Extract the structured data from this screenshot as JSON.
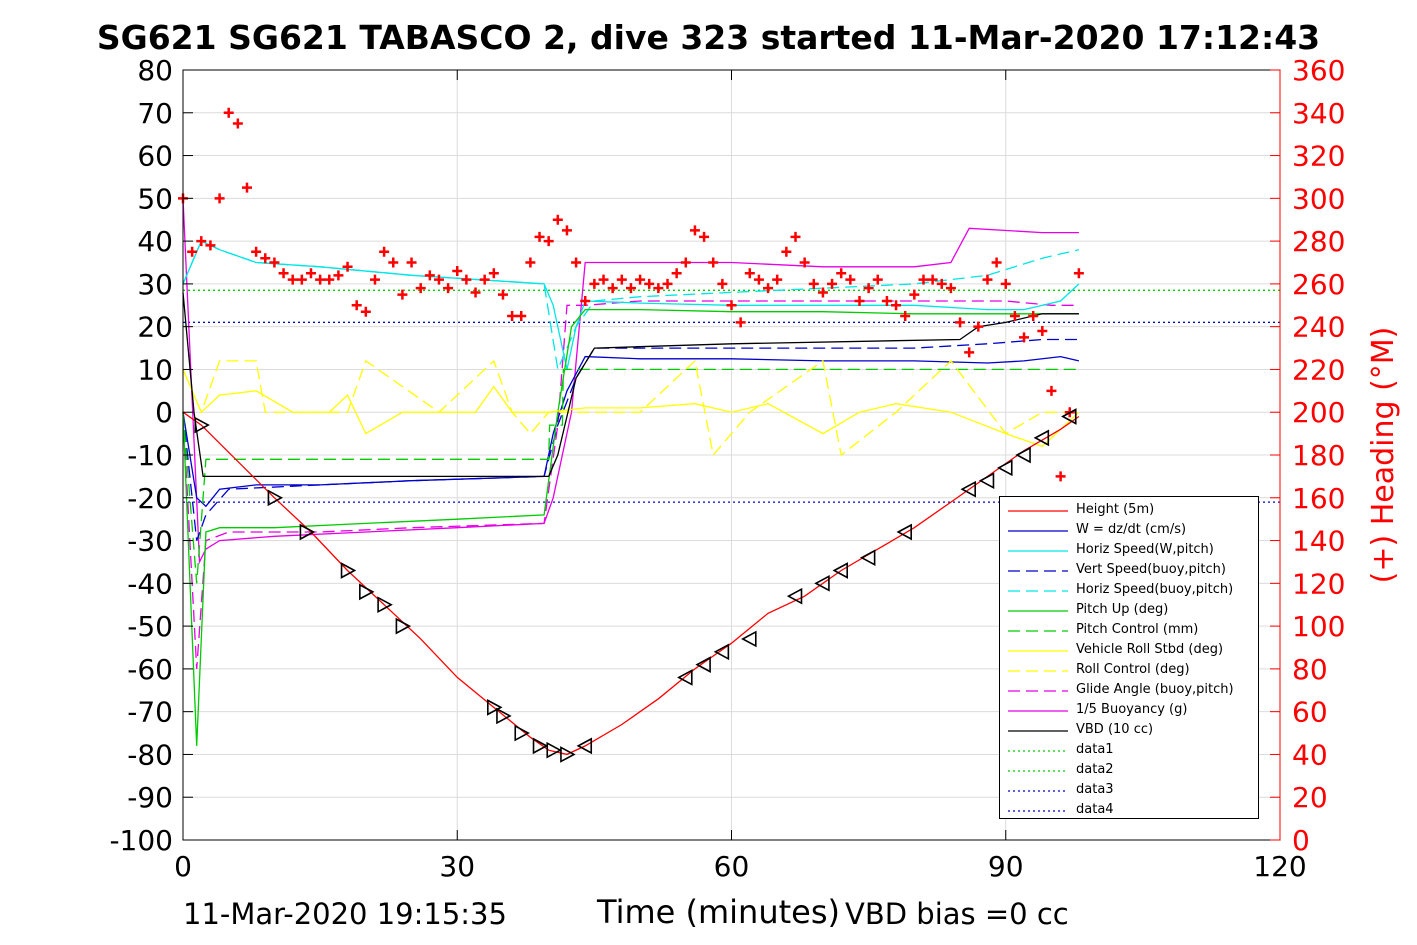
{
  "title": "SG621 SG621 TABASCO 2, dive 323 started 11-Mar-2020 17:12:43",
  "footer": {
    "timestamp": "11-Mar-2020 19:15:35",
    "xlabel": "Time (minutes)",
    "vbd_bias": "VBD bias =0 cc"
  },
  "chart_data": {
    "type": "line",
    "xlabel": "Time (minutes)",
    "ylabel": "",
    "y2label": "(+) Heading (°M)",
    "xlim": [
      0,
      120
    ],
    "ylim": [
      -100,
      80
    ],
    "y2lim": [
      0,
      360
    ],
    "xticks": [
      "0",
      "30",
      "60",
      "90",
      "120"
    ],
    "yticks": [
      "80",
      "70",
      "60",
      "50",
      "40",
      "30",
      "20",
      "10",
      "0",
      "-10",
      "-20",
      "-30",
      "-40",
      "-50",
      "-60",
      "-70",
      "-80",
      "-90",
      "-100"
    ],
    "y2ticks": [
      "360",
      "340",
      "320",
      "300",
      "280",
      "260",
      "240",
      "220",
      "200",
      "180",
      "160",
      "140",
      "120",
      "100",
      "80",
      "60",
      "40",
      "20",
      "0"
    ],
    "grid": true,
    "legend_position": "bottom-right",
    "colors": {
      "height": "#ff0000",
      "w": "#0000cc",
      "horiz_w": "#00e6e6",
      "vert_buoy": "#0000cc",
      "horiz_buoy": "#00e6e6",
      "pitch": "#00cc00",
      "pitch_ctrl": "#00cc00",
      "roll": "#ffff00",
      "roll_ctrl": "#ffff00",
      "glide": "#e600e6",
      "buoyancy": "#e600e6",
      "vbd": "#000000",
      "data1": "#00cc00",
      "data2": "#00cc00",
      "data3": "#0000cc",
      "data4": "#0000cc",
      "heading": "#ff0000"
    },
    "legend": [
      {
        "key": "height",
        "label": "Height (5m)",
        "dash": "solid"
      },
      {
        "key": "w",
        "label": "W = dz/dt (cm/s)",
        "dash": "solid"
      },
      {
        "key": "horiz_w",
        "label": "Horiz Speed(W,pitch)",
        "dash": "solid"
      },
      {
        "key": "vert_buoy",
        "label": "Vert Speed(buoy,pitch)",
        "dash": "dashed"
      },
      {
        "key": "horiz_buoy",
        "label": "Horiz Speed(buoy,pitch)",
        "dash": "dashed"
      },
      {
        "key": "pitch",
        "label": "Pitch Up (deg)",
        "dash": "solid"
      },
      {
        "key": "pitch_ctrl",
        "label": "Pitch Control (mm)",
        "dash": "dashed"
      },
      {
        "key": "roll",
        "label": "Vehicle Roll Stbd (deg)",
        "dash": "solid"
      },
      {
        "key": "roll_ctrl",
        "label": "Roll Control (deg)",
        "dash": "dashed"
      },
      {
        "key": "glide",
        "label": "Glide Angle (buoy,pitch)",
        "dash": "dashed"
      },
      {
        "key": "buoyancy",
        "label": "1/5 Buoyancy (g)",
        "dash": "solid"
      },
      {
        "key": "vbd",
        "label": "VBD (10 cc)",
        "dash": "solid"
      },
      {
        "key": "data1",
        "label": "data1",
        "dash": "dotted"
      },
      {
        "key": "data2",
        "label": "data2",
        "dash": "dotted"
      },
      {
        "key": "data3",
        "label": "data3",
        "dash": "dotted"
      },
      {
        "key": "data4",
        "label": "data4",
        "dash": "dotted"
      }
    ],
    "series": {
      "height": {
        "x": [
          0,
          2,
          10,
          14,
          18,
          22,
          26,
          30,
          34,
          38,
          40,
          42,
          44,
          48,
          52,
          56,
          60,
          64,
          68,
          72,
          76,
          80,
          84,
          88,
          92,
          96,
          98
        ],
        "y": [
          0,
          -3,
          -20,
          -28,
          -37,
          -45,
          -53,
          -62,
          -69,
          -76,
          -79,
          -80,
          -78,
          -73,
          -67,
          -60,
          -54,
          -47,
          -43,
          -37,
          -32,
          -27,
          -21,
          -15,
          -9,
          -4,
          -1
        ]
      },
      "w": {
        "x": [
          0,
          1.5,
          2.5,
          4,
          8,
          15,
          25,
          39.5,
          40.5,
          42,
          44,
          50,
          60,
          70,
          80,
          88,
          92,
          96,
          98
        ],
        "y": [
          0,
          -20,
          -22,
          -18,
          -17,
          -17,
          -16,
          -15,
          -5,
          5,
          13,
          12.5,
          12.5,
          12,
          12,
          11.5,
          12,
          13,
          12
        ]
      },
      "horiz_w": {
        "x": [
          0,
          2,
          4,
          8,
          15,
          25,
          39.5,
          40.5,
          42,
          43,
          44,
          50,
          60,
          70,
          80,
          88,
          92,
          96,
          98
        ],
        "y": [
          30,
          40,
          38,
          35,
          34,
          32,
          30,
          25,
          10,
          20,
          26,
          25.5,
          25,
          25,
          25,
          24,
          24,
          26,
          30
        ]
      },
      "vert_buoy": {
        "x": [
          0,
          1.5,
          2.5,
          5,
          15,
          25,
          39.5,
          41,
          43,
          45,
          50,
          60,
          70,
          80,
          88,
          94,
          98
        ],
        "y": [
          0,
          -30,
          -24,
          -18,
          -17,
          -16,
          -15,
          -3,
          8,
          15,
          15,
          15,
          15,
          15,
          16,
          17,
          17
        ]
      },
      "horiz_buoy": {
        "x": [
          0,
          2,
          4,
          8,
          15,
          25,
          39.5,
          41,
          43,
          45,
          50,
          60,
          70,
          80,
          88,
          94,
          98
        ],
        "y": [
          30,
          40,
          38,
          35,
          34,
          32,
          30,
          10,
          20,
          26,
          27,
          28,
          29,
          30,
          32,
          36,
          38
        ]
      },
      "pitch": {
        "x": [
          0,
          1.5,
          2.5,
          4,
          10,
          20,
          30,
          39.5,
          41,
          42.5,
          44,
          50,
          60,
          70,
          80,
          88,
          92,
          98
        ],
        "y": [
          0,
          -78,
          -28,
          -27,
          -27,
          -26,
          -25,
          -24,
          0,
          20,
          24,
          24,
          23.5,
          23.5,
          23,
          23,
          23,
          23
        ]
      },
      "pitch_ctrl": {
        "x": [
          0,
          1.5,
          2.5,
          40,
          40.1,
          41.5,
          41.6,
          85,
          98
        ],
        "y": [
          0,
          -40,
          -11,
          -11,
          -3,
          -3,
          10,
          10,
          10
        ]
      },
      "roll": {
        "x": [
          0,
          2,
          4,
          8,
          12,
          16,
          18,
          20,
          24,
          28,
          32,
          34,
          36,
          38,
          40,
          44,
          50,
          56,
          60,
          64,
          70,
          74,
          78,
          84,
          90,
          94,
          98
        ],
        "y": [
          10,
          0,
          4,
          5,
          0,
          0,
          4,
          -5,
          0,
          0,
          0,
          6,
          0,
          0,
          0,
          1,
          1,
          2,
          0,
          2,
          -5,
          0,
          2,
          0,
          -5,
          -8,
          0
        ]
      },
      "roll_ctrl": {
        "x": [
          0,
          2,
          4,
          8,
          9,
          18,
          20,
          28,
          34,
          36,
          38,
          40,
          44,
          50,
          56,
          58,
          62,
          70,
          72,
          78,
          84,
          90,
          94,
          98
        ],
        "y": [
          10,
          0,
          12,
          12,
          0,
          0,
          12,
          0,
          12,
          0,
          -5,
          0,
          0,
          0,
          12,
          -10,
          0,
          12,
          -10,
          0,
          12,
          -5,
          0,
          0
        ]
      },
      "glide": {
        "x": [
          0,
          1.5,
          2.5,
          5,
          15,
          25,
          39.5,
          41,
          42,
          44,
          50,
          60,
          70,
          80,
          90,
          95,
          98
        ],
        "y": [
          0,
          -60,
          -30,
          -28,
          -28,
          -27,
          -26,
          -3,
          25,
          25,
          26,
          26,
          26,
          26,
          26,
          25,
          25
        ]
      },
      "buoyancy": {
        "x": [
          0,
          1.8,
          2.5,
          4,
          10,
          20,
          30,
          39.5,
          40.5,
          42.5,
          44,
          50,
          60,
          70,
          80,
          84,
          86,
          94,
          98
        ],
        "y": [
          50,
          -35,
          -32,
          -30,
          -29,
          -28,
          -27,
          -26,
          -20,
          0,
          35,
          35,
          35,
          34,
          34,
          35,
          43,
          42,
          42
        ]
      },
      "vbd": {
        "x": [
          0,
          1.2,
          2.2,
          40,
          41,
          43,
          45,
          60,
          85,
          87,
          90,
          94,
          98
        ],
        "y": [
          28,
          0,
          -15,
          -15,
          -10,
          8,
          15,
          16,
          17,
          20,
          21,
          23,
          23
        ]
      },
      "data1": {
        "x": [
          0,
          120
        ],
        "y": [
          28.5,
          28.5
        ]
      },
      "data2": {
        "x": [
          0,
          120
        ],
        "y": [
          21,
          21
        ]
      },
      "data3": {
        "x": [
          0,
          120
        ],
        "y": [
          21,
          21
        ]
      },
      "data4": {
        "x": [
          0,
          120
        ],
        "y": [
          -21,
          -21
        ]
      },
      "heading": {
        "x": [
          0,
          1,
          2,
          3,
          4,
          5,
          6,
          7,
          8,
          9,
          10,
          11,
          12,
          13,
          14,
          15,
          16,
          17,
          18,
          19,
          20,
          21,
          22,
          23,
          24,
          25,
          26,
          27,
          28,
          29,
          30,
          31,
          32,
          33,
          34,
          35,
          36,
          37,
          38,
          39,
          40,
          41,
          42,
          43,
          44,
          45,
          46,
          47,
          48,
          49,
          50,
          51,
          52,
          53,
          54,
          55,
          56,
          57,
          58,
          59,
          60,
          61,
          62,
          63,
          64,
          65,
          66,
          67,
          68,
          69,
          70,
          71,
          72,
          73,
          74,
          75,
          76,
          77,
          78,
          79,
          80,
          81,
          82,
          83,
          84,
          85,
          86,
          87,
          88,
          89,
          90,
          91,
          92,
          93,
          94,
          95,
          96,
          97,
          98
        ],
        "y": [
          300,
          275,
          280,
          278,
          300,
          340,
          335,
          305,
          275,
          272,
          270,
          265,
          262,
          262,
          265,
          262,
          262,
          264,
          268,
          250,
          247,
          262,
          275,
          270,
          255,
          270,
          258,
          264,
          262,
          258,
          266,
          262,
          256,
          262,
          265,
          255,
          245,
          245,
          270,
          282,
          280,
          290,
          285,
          270,
          252,
          260,
          262,
          258,
          262,
          258,
          262,
          260,
          258,
          260,
          265,
          270,
          285,
          282,
          270,
          260,
          250,
          242,
          265,
          262,
          258,
          262,
          275,
          282,
          270,
          260,
          256,
          260,
          265,
          262,
          252,
          258,
          262,
          252,
          250,
          245,
          255,
          262,
          262,
          260,
          258,
          242,
          228,
          240,
          262,
          270,
          260,
          245,
          235,
          245,
          238,
          210,
          170,
          200,
          265
        ]
      }
    },
    "markers": {
      "x": [
        2,
        10,
        13.5,
        18,
        20,
        22,
        24,
        34,
        35,
        37,
        39,
        40.5,
        42,
        44,
        55,
        57,
        59,
        62,
        67,
        70,
        72,
        75,
        79,
        86,
        88,
        90,
        92,
        94,
        97
      ],
      "y": [
        -3,
        -20,
        -28,
        -37,
        -42,
        -45,
        -50,
        -69,
        -71,
        -75,
        -78,
        -79,
        -80,
        -78,
        -62,
        -59,
        -56,
        -53,
        -43,
        -40,
        -37,
        -34,
        -28,
        -18,
        -16,
        -13,
        -10,
        -6,
        -1
      ]
    }
  }
}
